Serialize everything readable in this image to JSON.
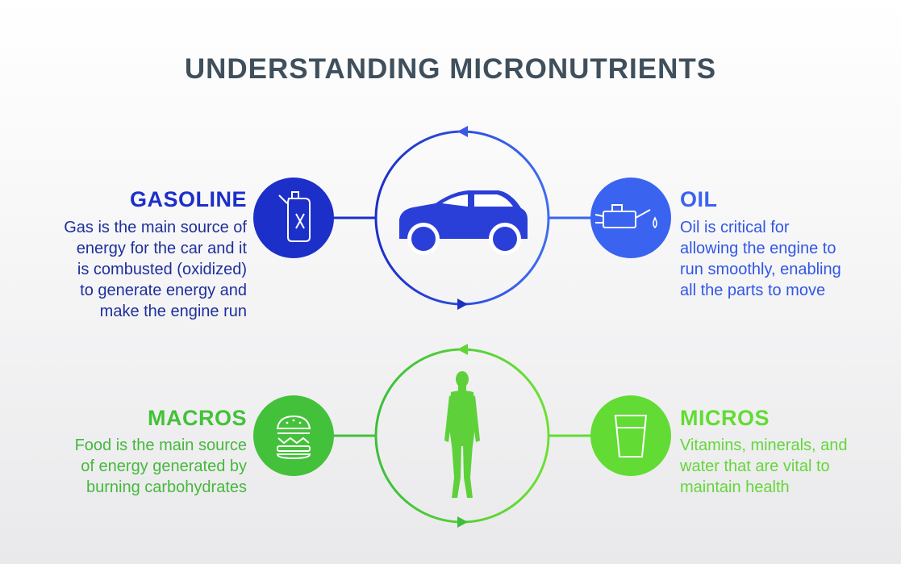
{
  "title": "UNDERSTANDING MICRONUTRIENTS",
  "car": {
    "left": {
      "heading": "GASOLINE",
      "lines": [
        "Gas is the main source of",
        "energy for the car and it",
        "is combusted (oxidized)",
        "to generate energy and",
        "make the engine run"
      ],
      "icon": "fuel-can-icon"
    },
    "right": {
      "heading": "OIL",
      "lines": [
        "Oil is critical for",
        "allowing the engine to",
        "run smoothly, enabling",
        "all the parts to move"
      ],
      "icon": "oil-can-icon"
    },
    "center_icon": "car-icon"
  },
  "body": {
    "left": {
      "heading": "MACROS",
      "lines": [
        "Food is the main source",
        "of energy generated by",
        "burning carbohydrates"
      ],
      "icon": "burger-icon"
    },
    "right": {
      "heading": "MICROS",
      "lines": [
        "Vitamins, minerals, and",
        "water that are vital to",
        "maintain health"
      ],
      "icon": "water-glass-icon"
    },
    "center_icon": "human-figure-icon"
  },
  "colors": {
    "title": "#3f4f5c",
    "blue_dark": "#1c2fc9",
    "blue_light": "#3a63f0",
    "green_dark": "#44c13a",
    "green_light": "#62dc34"
  }
}
